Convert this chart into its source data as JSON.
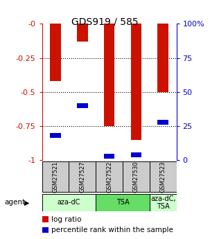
{
  "title": "GDS919 / 585",
  "samples": [
    "GSM27521",
    "GSM27527",
    "GSM27522",
    "GSM27530",
    "GSM27523"
  ],
  "log_ratio": [
    -0.42,
    -0.13,
    -0.75,
    -0.85,
    -0.5
  ],
  "percentile_rank": [
    18,
    40,
    3,
    4,
    28
  ],
  "ylim_left": [
    -1.0,
    0.0
  ],
  "ylim_right": [
    0,
    100
  ],
  "yticks_left": [
    -1.0,
    -0.75,
    -0.5,
    -0.25,
    0.0
  ],
  "ytick_labels_left": [
    "-1",
    "-0.75",
    "-0.5",
    "-0.25",
    "-0"
  ],
  "yticks_right": [
    0,
    25,
    50,
    75,
    100
  ],
  "ytick_labels_right": [
    "0",
    "25",
    "50",
    "75",
    "100%"
  ],
  "agent_groups": [
    {
      "label": "aza-dC",
      "span": [
        0,
        2
      ],
      "color": "#ccffcc"
    },
    {
      "label": "TSA",
      "span": [
        2,
        4
      ],
      "color": "#66dd66"
    },
    {
      "label": "aza-dC,\nTSA",
      "span": [
        4,
        5
      ],
      "color": "#ccffcc"
    }
  ],
  "bar_width": 0.4,
  "log_ratio_color": "#cc1100",
  "percentile_color": "#0000cc",
  "label_log_ratio": "log ratio",
  "label_percentile": "percentile rank within the sample",
  "left_axis_color": "#cc1100",
  "right_axis_color": "#0000cc",
  "sample_box_color": "#cccccc"
}
